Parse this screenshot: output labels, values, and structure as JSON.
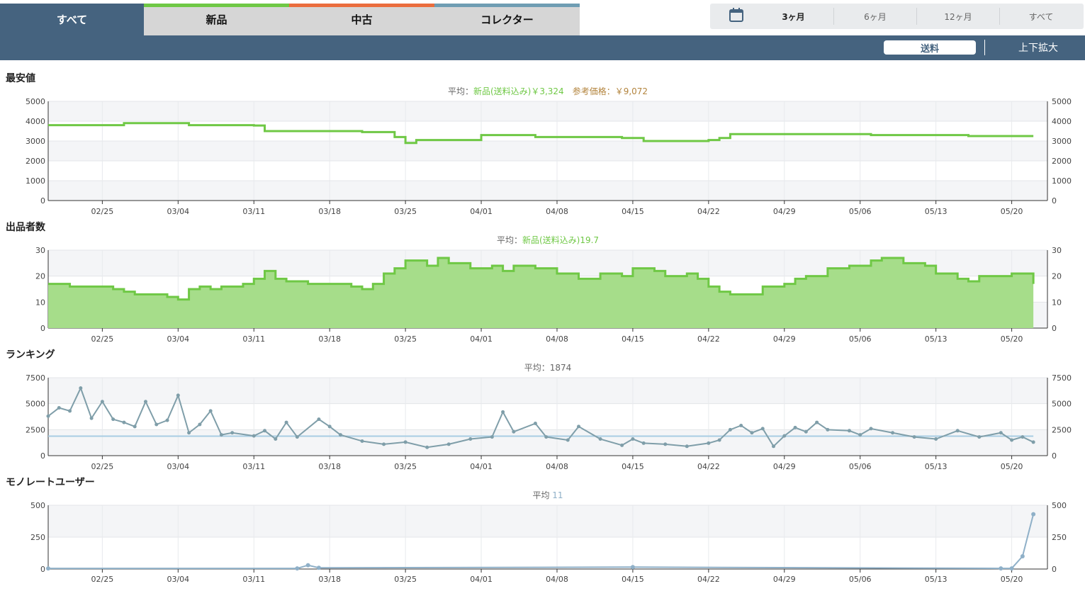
{
  "tabs": [
    {
      "label": "すべて",
      "stripe": ""
    },
    {
      "label": "新品",
      "stripe": "#6fc845"
    },
    {
      "label": "中古",
      "stripe": "#ea6d3d"
    },
    {
      "label": "コレクター",
      "stripe": "#6f9db3"
    }
  ],
  "ranges": [
    "3ヶ月",
    "6ヶ月",
    "12ヶ月",
    "すべて"
  ],
  "selected_range": "3ヶ月",
  "shipping_label": "送料",
  "zoom_label": "上下拡大",
  "icons": {
    "calendar": "calendar-icon"
  },
  "colors": {
    "new": "#6fc845",
    "rank": "#7f9ea9",
    "rank_avg": "#a8cde3",
    "user": "#8fb0c8",
    "ref_price": "#b3843d",
    "nav": "#45637f"
  },
  "x_ticks": [
    "02/25",
    "03/04",
    "03/11",
    "03/18",
    "03/25",
    "04/01",
    "04/08",
    "04/15",
    "04/22",
    "04/29",
    "05/06",
    "05/13",
    "05/20"
  ],
  "charts": [
    {
      "id": "price",
      "title": "最安値",
      "avg_prefix": "平均：",
      "avg_series": "新品(送料込み)￥3,324",
      "ref_label": "参考価格：￥9,072",
      "y_ticks": [
        "5000",
        "4000",
        "3000",
        "2000",
        "1000",
        "0"
      ]
    },
    {
      "id": "sellers",
      "title": "出品者数",
      "avg_prefix": "平均：",
      "avg_series": "新品(送料込み)19.7",
      "y_ticks": [
        "30",
        "20",
        "10",
        "0"
      ]
    },
    {
      "id": "ranking",
      "title": "ランキング",
      "avg_prefix": "平均：1874",
      "y_ticks": [
        "7500",
        "5000",
        "2500",
        "0"
      ]
    },
    {
      "id": "users",
      "title": "モノレートユーザー",
      "avg_prefix": "平均",
      "avg_series": "11",
      "y_ticks": [
        "500",
        "250",
        "0"
      ]
    }
  ],
  "chart_data": [
    {
      "type": "line",
      "title": "最安値",
      "series": [
        {
          "name": "新品(送料込み)",
          "points": [
            [
              "02/20",
              3800
            ],
            [
              "02/25",
              3800
            ],
            [
              "02/27",
              3900
            ],
            [
              "03/04",
              3900
            ],
            [
              "03/05",
              3800
            ],
            [
              "03/11",
              3780
            ],
            [
              "03/12",
              3500
            ],
            [
              "03/18",
              3500
            ],
            [
              "03/21",
              3450
            ],
            [
              "03/24",
              3200
            ],
            [
              "03/25",
              2900
            ],
            [
              "03/26",
              3050
            ],
            [
              "03/31",
              3050
            ],
            [
              "04/01",
              3300
            ],
            [
              "04/05",
              3300
            ],
            [
              "04/06",
              3200
            ],
            [
              "04/12",
              3200
            ],
            [
              "04/14",
              3150
            ],
            [
              "04/15",
              3150
            ],
            [
              "04/16",
              3000
            ],
            [
              "04/22",
              3050
            ],
            [
              "04/23",
              3150
            ],
            [
              "04/24",
              3350
            ],
            [
              "05/06",
              3350
            ],
            [
              "05/07",
              3300
            ],
            [
              "05/15",
              3300
            ],
            [
              "05/16",
              3250
            ],
            [
              "05/22",
              3250
            ]
          ]
        }
      ],
      "ylim": [
        0,
        5000
      ]
    },
    {
      "type": "area",
      "title": "出品者数",
      "series": [
        {
          "name": "新品(送料込み)",
          "points": [
            [
              "02/20",
              17
            ],
            [
              "02/22",
              16
            ],
            [
              "02/25",
              16
            ],
            [
              "02/26",
              15
            ],
            [
              "02/27",
              14
            ],
            [
              "02/28",
              13
            ],
            [
              "03/03",
              12
            ],
            [
              "03/04",
              11
            ],
            [
              "03/05",
              15
            ],
            [
              "03/06",
              16
            ],
            [
              "03/07",
              15
            ],
            [
              "03/08",
              16
            ],
            [
              "03/10",
              17
            ],
            [
              "03/11",
              19
            ],
            [
              "03/12",
              22
            ],
            [
              "03/13",
              19
            ],
            [
              "03/14",
              18
            ],
            [
              "03/16",
              17
            ],
            [
              "03/19",
              17
            ],
            [
              "03/20",
              16
            ],
            [
              "03/21",
              15
            ],
            [
              "03/22",
              17
            ],
            [
              "03/23",
              21
            ],
            [
              "03/24",
              23
            ],
            [
              "03/25",
              26
            ],
            [
              "03/27",
              24
            ],
            [
              "03/28",
              27
            ],
            [
              "03/29",
              25
            ],
            [
              "03/31",
              23
            ],
            [
              "04/02",
              24
            ],
            [
              "04/03",
              22
            ],
            [
              "04/04",
              24
            ],
            [
              "04/06",
              23
            ],
            [
              "04/08",
              21
            ],
            [
              "04/10",
              19
            ],
            [
              "04/12",
              21
            ],
            [
              "04/14",
              20
            ],
            [
              "04/15",
              23
            ],
            [
              "04/17",
              22
            ],
            [
              "04/18",
              20
            ],
            [
              "04/20",
              21
            ],
            [
              "04/21",
              19
            ],
            [
              "04/22",
              16
            ],
            [
              "04/23",
              14
            ],
            [
              "04/24",
              13
            ],
            [
              "04/26",
              13
            ],
            [
              "04/27",
              16
            ],
            [
              "04/29",
              17
            ],
            [
              "04/30",
              19
            ],
            [
              "05/01",
              20
            ],
            [
              "05/03",
              23
            ],
            [
              "05/05",
              24
            ],
            [
              "05/07",
              26
            ],
            [
              "05/08",
              27
            ],
            [
              "05/10",
              25
            ],
            [
              "05/12",
              24
            ],
            [
              "05/13",
              21
            ],
            [
              "05/15",
              19
            ],
            [
              "05/16",
              18
            ],
            [
              "05/17",
              20
            ],
            [
              "05/20",
              21
            ],
            [
              "05/22",
              17
            ]
          ]
        }
      ],
      "ylim": [
        0,
        30
      ]
    },
    {
      "type": "line",
      "title": "ランキング",
      "series": [
        {
          "name": "ランキング",
          "points": [
            [
              "02/20",
              3800
            ],
            [
              "02/21",
              4600
            ],
            [
              "02/22",
              4300
            ],
            [
              "02/23",
              6500
            ],
            [
              "02/24",
              3600
            ],
            [
              "02/25",
              5200
            ],
            [
              "02/26",
              3500
            ],
            [
              "02/27",
              3200
            ],
            [
              "02/28",
              2800
            ],
            [
              "03/01",
              5200
            ],
            [
              "03/02",
              3000
            ],
            [
              "03/03",
              3400
            ],
            [
              "03/04",
              5800
            ],
            [
              "03/05",
              2200
            ],
            [
              "03/06",
              3000
            ],
            [
              "03/07",
              4300
            ],
            [
              "03/08",
              2000
            ],
            [
              "03/09",
              2200
            ],
            [
              "03/11",
              1900
            ],
            [
              "03/12",
              2400
            ],
            [
              "03/13",
              1600
            ],
            [
              "03/14",
              3200
            ],
            [
              "03/15",
              1800
            ],
            [
              "03/17",
              3500
            ],
            [
              "03/18",
              2800
            ],
            [
              "03/19",
              2000
            ],
            [
              "03/21",
              1400
            ],
            [
              "03/23",
              1100
            ],
            [
              "03/25",
              1300
            ],
            [
              "03/27",
              800
            ],
            [
              "03/29",
              1100
            ],
            [
              "03/31",
              1600
            ],
            [
              "04/02",
              1800
            ],
            [
              "04/03",
              4200
            ],
            [
              "04/04",
              2300
            ],
            [
              "04/06",
              3100
            ],
            [
              "04/07",
              1800
            ],
            [
              "04/09",
              1500
            ],
            [
              "04/10",
              2800
            ],
            [
              "04/12",
              1600
            ],
            [
              "04/14",
              1000
            ],
            [
              "04/15",
              1600
            ],
            [
              "04/16",
              1200
            ],
            [
              "04/18",
              1100
            ],
            [
              "04/20",
              900
            ],
            [
              "04/22",
              1200
            ],
            [
              "04/23",
              1500
            ],
            [
              "04/24",
              2500
            ],
            [
              "04/25",
              2900
            ],
            [
              "04/26",
              2200
            ],
            [
              "04/27",
              2600
            ],
            [
              "04/28",
              900
            ],
            [
              "04/29",
              1900
            ],
            [
              "04/30",
              2700
            ],
            [
              "05/01",
              2300
            ],
            [
              "05/02",
              3200
            ],
            [
              "05/03",
              2500
            ],
            [
              "05/05",
              2400
            ],
            [
              "05/06",
              2000
            ],
            [
              "05/07",
              2600
            ],
            [
              "05/09",
              2200
            ],
            [
              "05/11",
              1800
            ],
            [
              "05/13",
              1600
            ],
            [
              "05/15",
              2400
            ],
            [
              "05/17",
              1800
            ],
            [
              "05/19",
              2200
            ],
            [
              "05/20",
              1500
            ],
            [
              "05/21",
              1800
            ],
            [
              "05/22",
              1300
            ]
          ]
        }
      ],
      "average": 1874,
      "ylim": [
        0,
        7500
      ]
    },
    {
      "type": "line",
      "title": "モノレートユーザー",
      "series": [
        {
          "name": "モノレートユーザー",
          "points": [
            [
              "02/20",
              5
            ],
            [
              "03/15",
              5
            ],
            [
              "03/16",
              30
            ],
            [
              "03/17",
              10
            ],
            [
              "04/15",
              15
            ],
            [
              "05/19",
              5
            ],
            [
              "05/20",
              5
            ],
            [
              "05/21",
              100
            ],
            [
              "05/22",
              430
            ]
          ]
        }
      ],
      "ylim": [
        0,
        500
      ]
    }
  ]
}
